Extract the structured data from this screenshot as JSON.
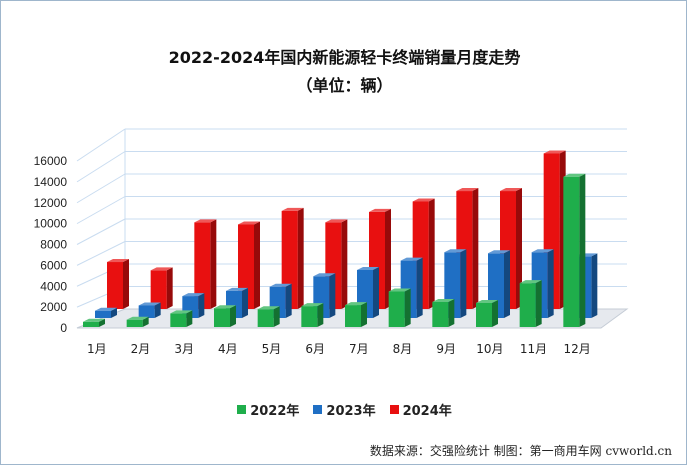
{
  "chart_data": {
    "type": "bar",
    "title": "2022-2024年国内新能源轻卡终端销量月度走势",
    "subtitle": "（单位：辆）",
    "categories": [
      "1月",
      "2月",
      "3月",
      "4月",
      "5月",
      "6月",
      "7月",
      "8月",
      "9月",
      "10月",
      "11月",
      "12月"
    ],
    "series": [
      {
        "name": "2022年",
        "color": "#1fae4b",
        "values": [
          500,
          700,
          1300,
          1800,
          1700,
          2000,
          2100,
          3400,
          2400,
          2300,
          4200,
          14400
        ]
      },
      {
        "name": "2023年",
        "color": "#1f6fc4",
        "values": [
          700,
          1200,
          2100,
          2600,
          3000,
          4000,
          4600,
          5500,
          6300,
          6200,
          6300,
          5900
        ]
      },
      {
        "name": "2024年",
        "color": "#e81010",
        "values": [
          4500,
          3700,
          8300,
          8100,
          9400,
          8300,
          9300,
          10300,
          11300,
          11300,
          14900,
          null
        ]
      }
    ],
    "ylim": [
      0,
      16000
    ],
    "yticks": [
      0,
      2000,
      4000,
      6000,
      8000,
      10000,
      12000,
      14000,
      16000
    ],
    "grid": true,
    "legend": "bottom"
  },
  "source": "数据来源：交强险统计  制图：第一商用车网 cvworld.cn"
}
